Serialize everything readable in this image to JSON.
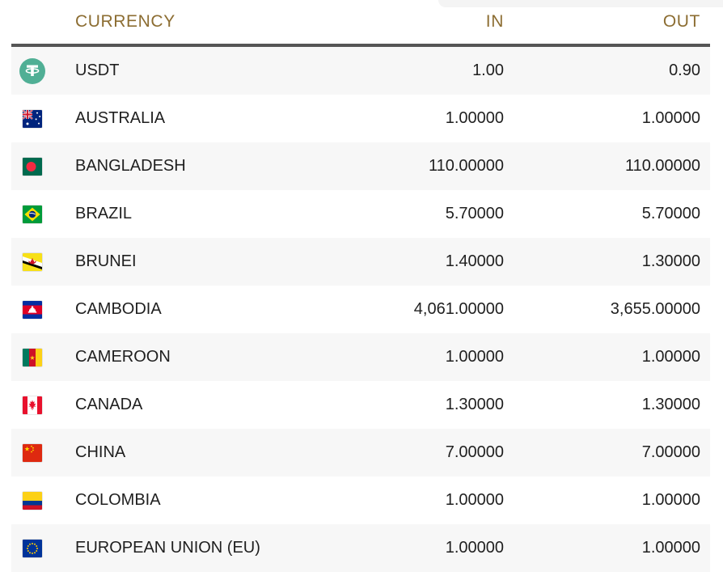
{
  "table": {
    "columns": {
      "currency": "CURRENCY",
      "in": "IN",
      "out": "OUT"
    },
    "rows": [
      {
        "icon": "usdt-icon",
        "name": "USDT",
        "in": "1.00",
        "out": "0.90"
      },
      {
        "icon": "flag-australia",
        "name": "AUSTRALIA",
        "in": "1.00000",
        "out": "1.00000"
      },
      {
        "icon": "flag-bangladesh",
        "name": "BANGLADESH",
        "in": "110.00000",
        "out": "110.00000"
      },
      {
        "icon": "flag-brazil",
        "name": "BRAZIL",
        "in": "5.70000",
        "out": "5.70000"
      },
      {
        "icon": "flag-brunei",
        "name": "BRUNEI",
        "in": "1.40000",
        "out": "1.30000"
      },
      {
        "icon": "flag-cambodia",
        "name": "CAMBODIA",
        "in": "4,061.00000",
        "out": "3,655.00000"
      },
      {
        "icon": "flag-cameroon",
        "name": "CAMEROON",
        "in": "1.00000",
        "out": "1.00000"
      },
      {
        "icon": "flag-canada",
        "name": "CANADA",
        "in": "1.30000",
        "out": "1.30000"
      },
      {
        "icon": "flag-china",
        "name": "CHINA",
        "in": "7.00000",
        "out": "7.00000"
      },
      {
        "icon": "flag-colombia",
        "name": "COLOMBIA",
        "in": "1.00000",
        "out": "1.00000"
      },
      {
        "icon": "flag-eu",
        "name": "EUROPEAN UNION (EU)",
        "in": "1.00000",
        "out": "1.00000"
      }
    ]
  },
  "colors": {
    "header_text": "#8c6d32",
    "header_border": "#555555",
    "row_alt_bg": "#f7f7f7",
    "body_text": "#1f1f1f",
    "usdt_teal": "#50af95"
  }
}
